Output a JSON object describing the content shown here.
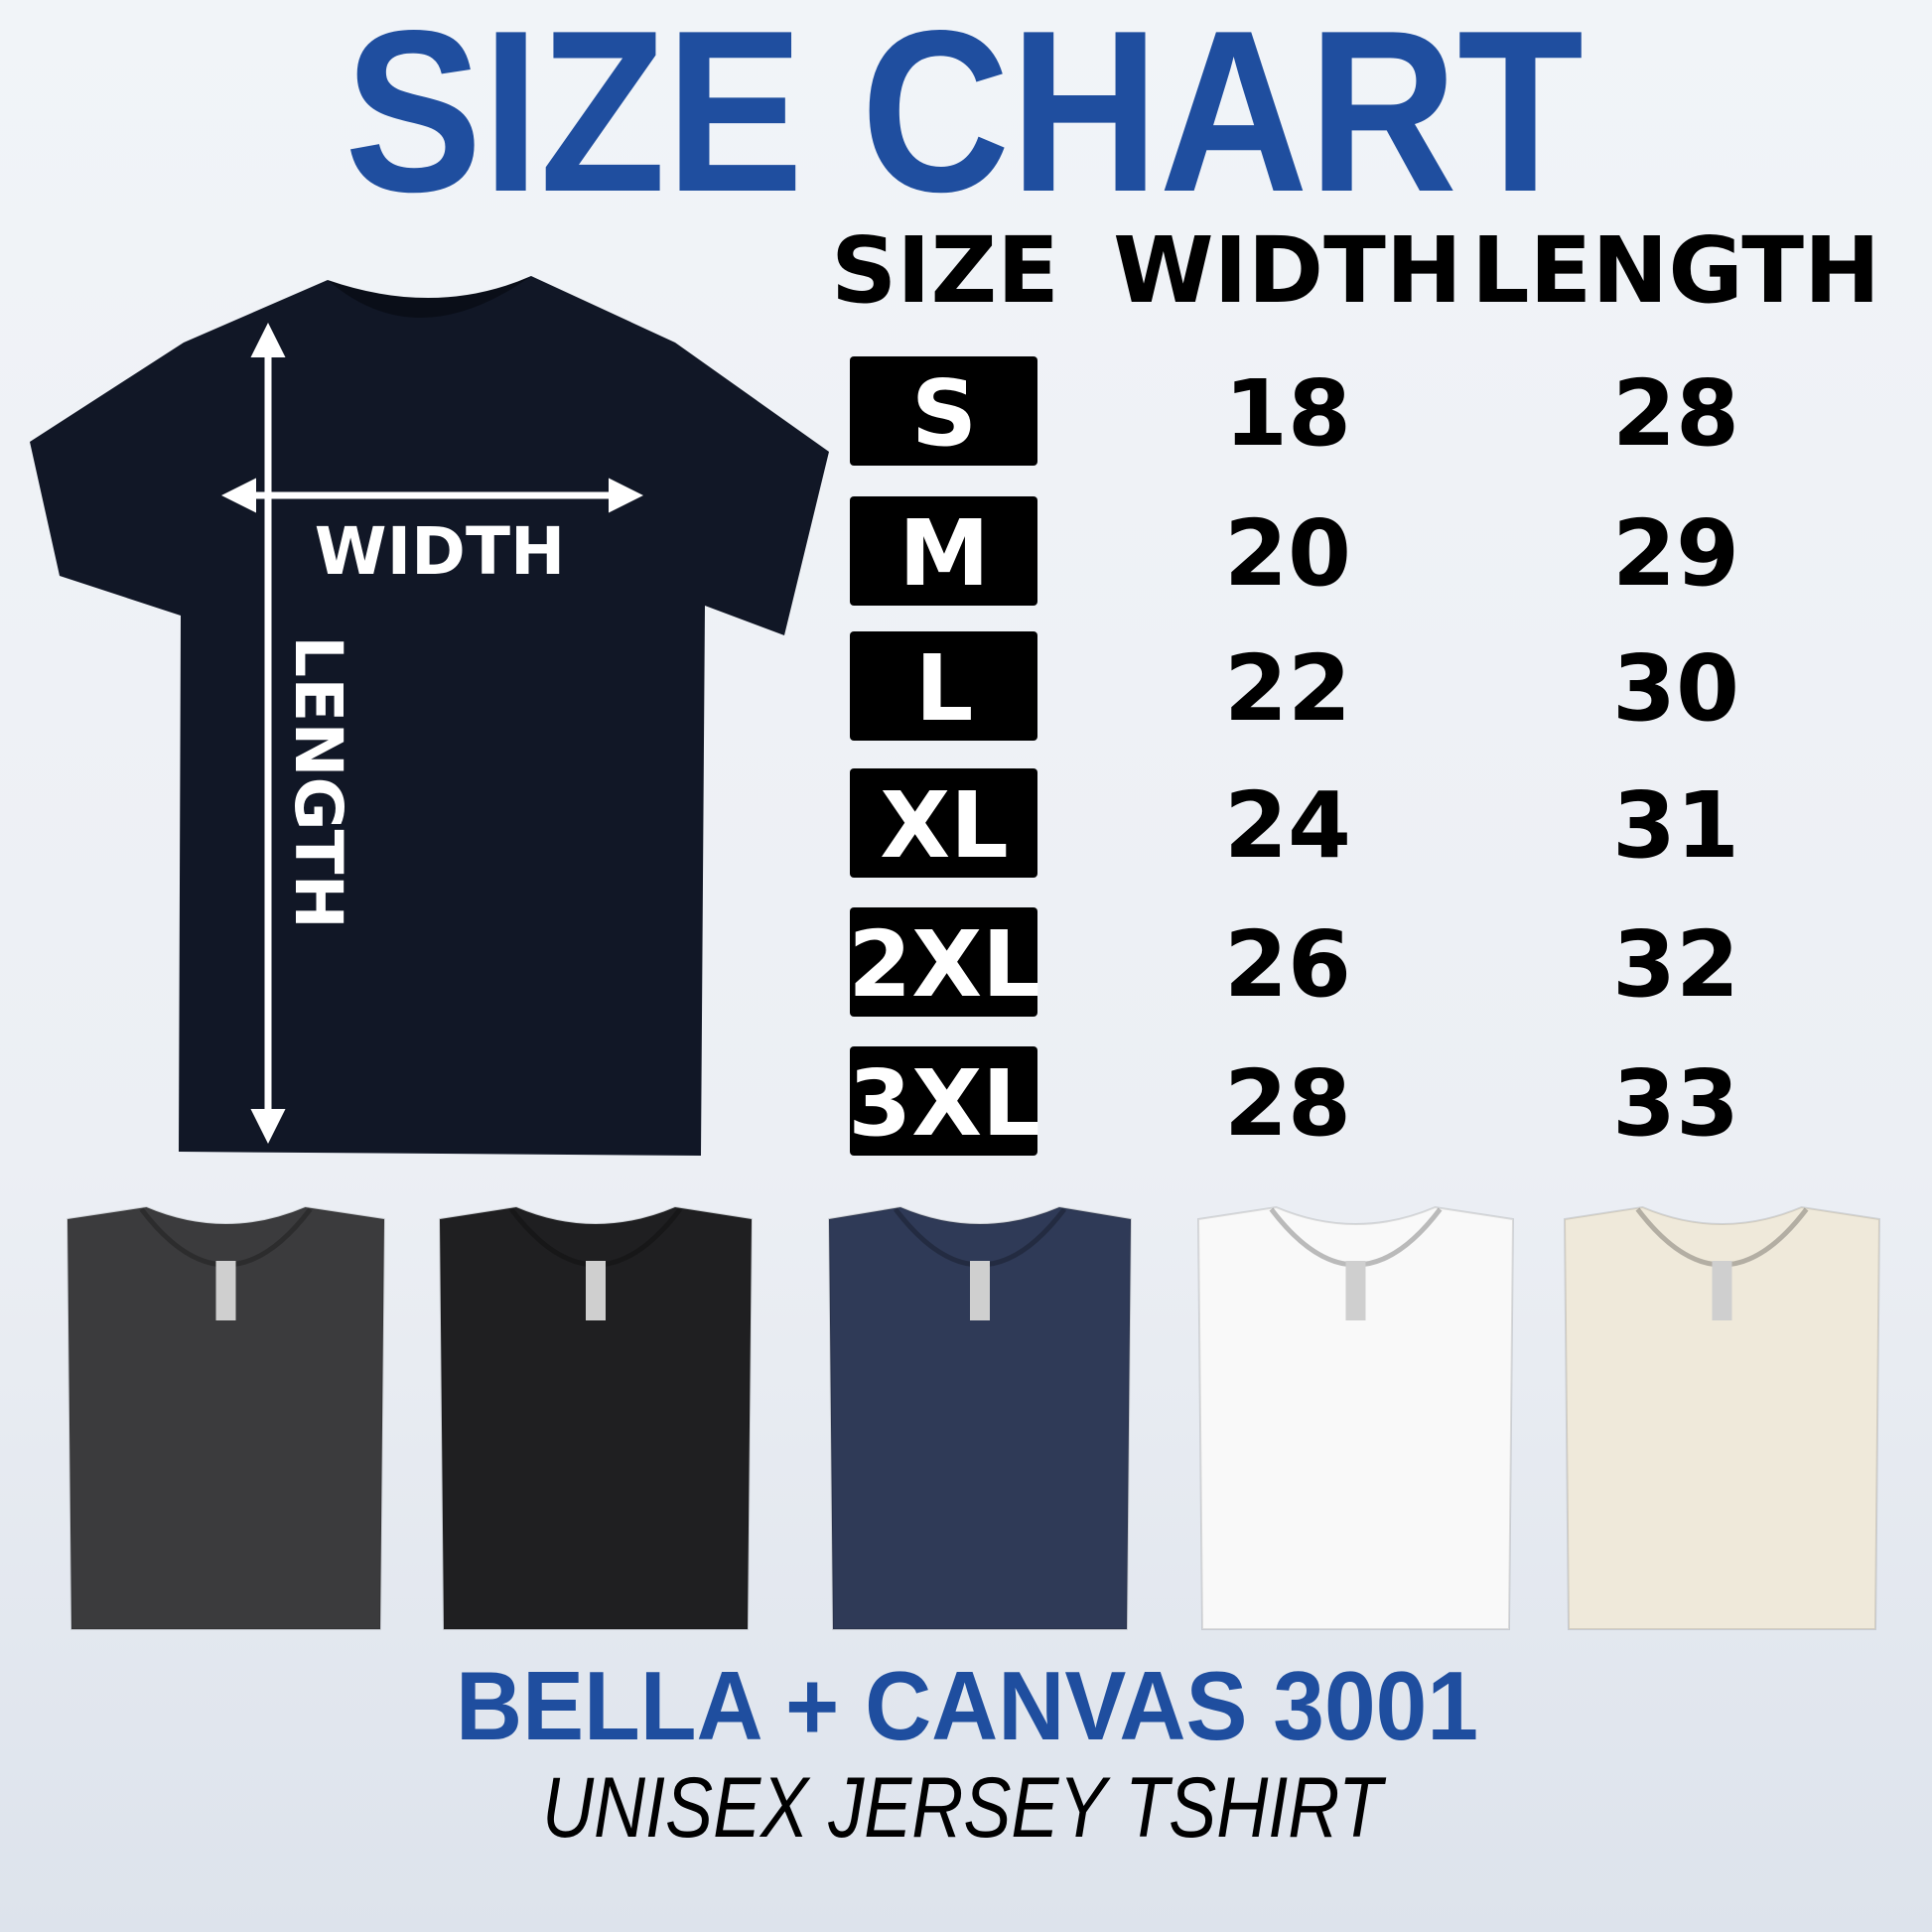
{
  "title": "SIZE CHART",
  "colors": {
    "accent": "#1f4e9f",
    "text": "#000000",
    "size_box": "#000000"
  },
  "table": {
    "headers": [
      "SIZE",
      "WIDTH",
      "LENGTH"
    ],
    "rows": [
      {
        "size": "S",
        "width": "18",
        "length": "28"
      },
      {
        "size": "M",
        "width": "20",
        "length": "29"
      },
      {
        "size": "L",
        "width": "22",
        "length": "30"
      },
      {
        "size": "XL",
        "width": "24",
        "length": "31"
      },
      {
        "size": "2XL",
        "width": "26",
        "length": "32"
      },
      {
        "size": "3XL",
        "width": "28",
        "length": "33"
      }
    ]
  },
  "diagram": {
    "width_label": "WIDTH",
    "length_label": "LENGTH",
    "shirt_color": "#111726"
  },
  "swatches": [
    {
      "color": "#3b3b3d"
    },
    {
      "color": "#1f1f21"
    },
    {
      "color": "#2f3a57"
    },
    {
      "color": "#f9f9f9"
    },
    {
      "color": "#efe9da"
    }
  ],
  "footer": {
    "brand": "BELLA + CANVAS 3001",
    "subtitle": "UNISEX JERSEY TSHIRT"
  }
}
